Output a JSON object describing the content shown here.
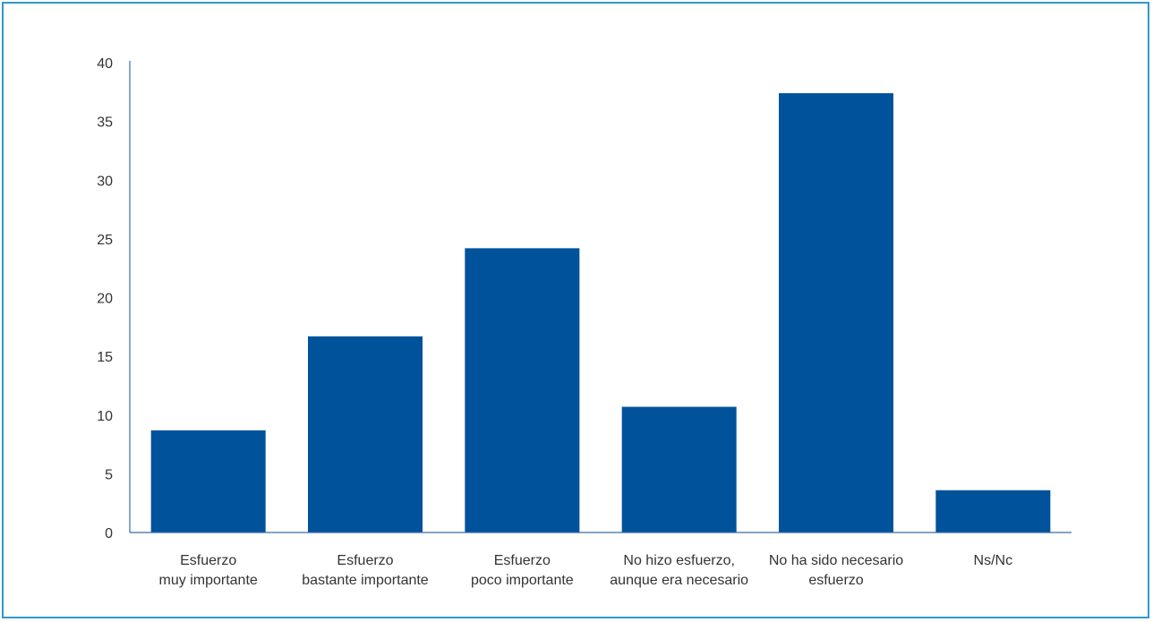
{
  "chart_data": {
    "type": "bar",
    "categories": [
      [
        "Esfuerzo",
        "muy importante"
      ],
      [
        "Esfuerzo",
        "bastante importante"
      ],
      [
        "Esfuerzo",
        "poco importante"
      ],
      [
        "No hizo esfuerzo,",
        "aunque era necesario"
      ],
      [
        "No ha sido necesario",
        "esfuerzo"
      ],
      [
        "Ns/Nc"
      ]
    ],
    "values": [
      8.7,
      16.7,
      24.2,
      10.7,
      37.4,
      3.6
    ],
    "yticks": [
      0,
      5,
      10,
      15,
      20,
      25,
      30,
      35,
      40
    ],
    "ylim": [
      0,
      40
    ],
    "title": "",
    "xlabel": "",
    "ylabel": "",
    "grid": false,
    "legend": "none"
  },
  "colors": {
    "bar": "#00529b",
    "axis": "#3a6ea5",
    "frame": "#2f9ac9"
  }
}
